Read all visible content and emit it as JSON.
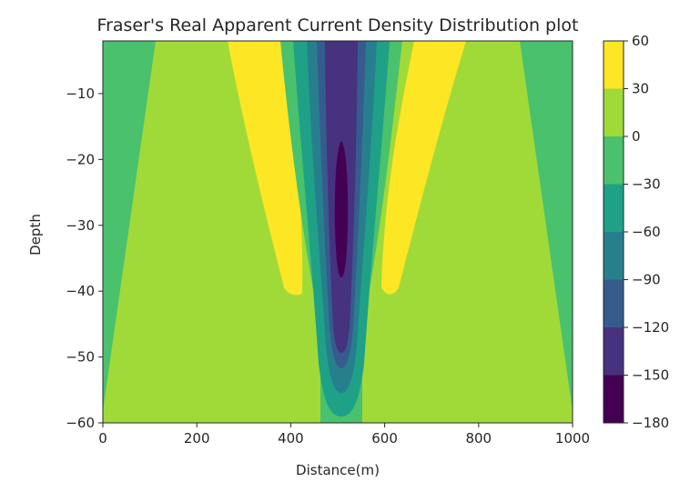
{
  "chart_data": {
    "type": "heatmap",
    "subtype": "filled-contour",
    "title": "Fraser's Real Apparent Current Density Distribution plot",
    "xlabel": "Distance(m)",
    "ylabel": "Depth",
    "xlim": [
      0,
      1000
    ],
    "ylim": [
      -60,
      -2
    ],
    "xticks": [
      0,
      200,
      400,
      600,
      800,
      1000
    ],
    "yticks": [
      -60,
      -50,
      -40,
      -30,
      -20,
      -10
    ],
    "grid": false,
    "colormap": "viridis",
    "colorbar": {
      "levels": [
        -180,
        -150,
        -120,
        -90,
        -60,
        -30,
        0,
        30,
        60
      ],
      "ticks": [
        -180,
        -150,
        -120,
        -90,
        -60,
        -30,
        0,
        30,
        60
      ],
      "colors": [
        "#440154",
        "#46327e",
        "#365c8d",
        "#277f8e",
        "#1fa187",
        "#4ac16d",
        "#a0da39",
        "#fde725"
      ]
    },
    "regions": [
      {
        "level_range": [
          0,
          30
        ],
        "description": "background",
        "color": "#a0da39"
      },
      {
        "level_range": [
          30,
          60
        ],
        "x_range": [
          260,
          420
        ],
        "depth_range": [
          -40,
          -2
        ],
        "color": "#fde725"
      },
      {
        "level_range": [
          30,
          60
        ],
        "x_range": [
          600,
          760
        ],
        "depth_range": [
          -40,
          -2
        ],
        "color": "#fde725"
      },
      {
        "level_range": [
          -30,
          0
        ],
        "x_range": [
          0,
          120
        ],
        "depth_range": [
          -60,
          -2
        ],
        "color": "#4ac16d"
      },
      {
        "level_range": [
          -30,
          0
        ],
        "x_range": [
          880,
          1000
        ],
        "depth_range": [
          -60,
          -2
        ],
        "color": "#4ac16d"
      },
      {
        "level_range": [
          -180,
          -150
        ],
        "x_range": [
          490,
          530
        ],
        "depth_range": [
          -42,
          -17
        ],
        "color": "#440154"
      }
    ]
  }
}
